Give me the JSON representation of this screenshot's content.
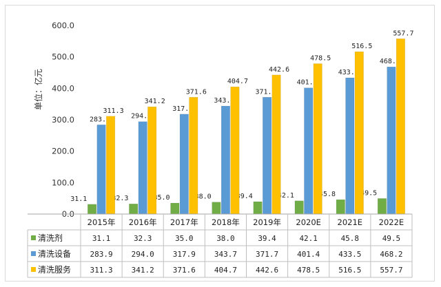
{
  "chart_data": {
    "type": "bar",
    "ylabel": "单位：亿元",
    "ylim": [
      0,
      600
    ],
    "yticks": [
      "0.0",
      "100.0",
      "200.0",
      "300.0",
      "400.0",
      "500.0",
      "600.0"
    ],
    "grid": false,
    "legend": "data-table-left",
    "categories": [
      "2015年",
      "2016年",
      "2017年",
      "2018年",
      "2019年",
      "2020E",
      "2021E",
      "2022E"
    ],
    "series": [
      {
        "name": "清洗剂",
        "color": "#70ad47",
        "values": [
          31.1,
          32.3,
          35.0,
          38.0,
          39.4,
          42.1,
          45.8,
          49.5
        ],
        "labels": [
          "31.1",
          "32.3",
          "35.0",
          "38.0",
          "39.4",
          "42.1",
          "45.8",
          "49.5"
        ]
      },
      {
        "name": "清洗设备",
        "color": "#5b9bd5",
        "values": [
          283.9,
          294.0,
          317.9,
          343.7,
          371.7,
          401.4,
          433.5,
          468.2
        ],
        "labels": [
          "283.9",
          "294.0",
          "317.9",
          "343.7",
          "371.7",
          "401.4",
          "433.5",
          "468.2"
        ]
      },
      {
        "name": "清洗服务",
        "color": "#ffc000",
        "values": [
          311.3,
          341.2,
          371.6,
          404.7,
          442.6,
          478.5,
          516.5,
          557.7
        ],
        "labels": [
          "311.3",
          "341.2",
          "371.6",
          "404.7",
          "442.6",
          "478.5",
          "516.5",
          "557.7"
        ]
      }
    ]
  }
}
